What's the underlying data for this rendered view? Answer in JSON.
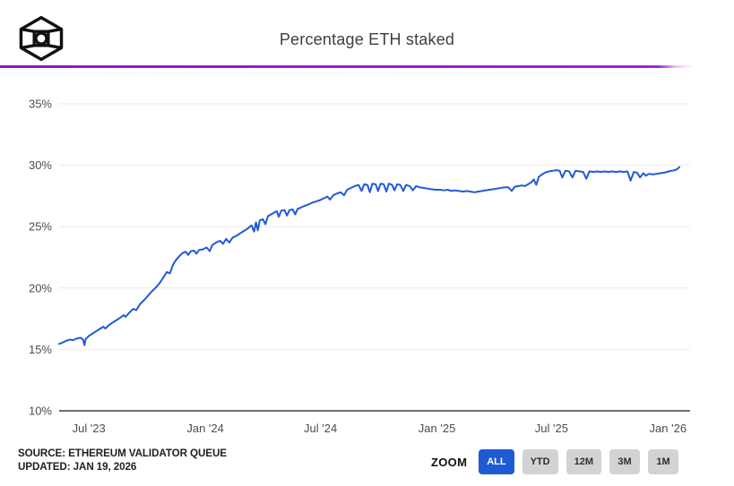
{
  "header": {
    "title": "Percentage ETH staked",
    "logo": "cube-logo"
  },
  "chart_data": {
    "type": "line",
    "title": "Percentage ETH staked",
    "xlabel": "",
    "ylabel": "",
    "ylim": [
      10,
      35
    ],
    "grid": true,
    "legend": "none",
    "line_color": "#2259d6",
    "axis_color": "#6f6f6f",
    "grid_color": "#e9e9e9",
    "x_range": [
      "2023-05-15",
      "2026-01-19"
    ],
    "yticks": [
      {
        "value": 35,
        "label": "35%"
      },
      {
        "value": 30,
        "label": "30%"
      },
      {
        "value": 25,
        "label": "25%"
      },
      {
        "value": 20,
        "label": "20%"
      },
      {
        "value": 15,
        "label": "15%"
      },
      {
        "value": 10,
        "label": "10%"
      }
    ],
    "xticks": [
      {
        "date": "2023-07-01",
        "label": "Jul '23"
      },
      {
        "date": "2024-01-01",
        "label": "Jan '24"
      },
      {
        "date": "2024-07-01",
        "label": "Jul '24"
      },
      {
        "date": "2025-01-01",
        "label": "Jan '25"
      },
      {
        "date": "2025-07-01",
        "label": "Jul '25"
      },
      {
        "date": "2026-01-01",
        "label": "Jan '26"
      }
    ],
    "series": [
      {
        "name": "Percentage ETH staked",
        "points": [
          [
            "2023-05-15",
            15.45
          ],
          [
            "2023-05-20",
            15.55
          ],
          [
            "2023-05-26",
            15.7
          ],
          [
            "2023-06-01",
            15.8
          ],
          [
            "2023-06-06",
            15.75
          ],
          [
            "2023-06-12",
            15.9
          ],
          [
            "2023-06-18",
            15.95
          ],
          [
            "2023-06-22",
            15.8
          ],
          [
            "2023-06-24",
            15.35
          ],
          [
            "2023-06-26",
            15.85
          ],
          [
            "2023-07-01",
            16.1
          ],
          [
            "2023-07-07",
            16.3
          ],
          [
            "2023-07-13",
            16.5
          ],
          [
            "2023-07-19",
            16.7
          ],
          [
            "2023-07-24",
            16.85
          ],
          [
            "2023-07-27",
            16.7
          ],
          [
            "2023-08-02",
            17.0
          ],
          [
            "2023-08-08",
            17.2
          ],
          [
            "2023-08-14",
            17.4
          ],
          [
            "2023-08-20",
            17.6
          ],
          [
            "2023-08-25",
            17.8
          ],
          [
            "2023-08-28",
            17.65
          ],
          [
            "2023-09-03",
            18.0
          ],
          [
            "2023-09-09",
            18.3
          ],
          [
            "2023-09-14",
            18.2
          ],
          [
            "2023-09-20",
            18.7
          ],
          [
            "2023-09-26",
            19.0
          ],
          [
            "2023-10-02",
            19.35
          ],
          [
            "2023-10-08",
            19.7
          ],
          [
            "2023-10-14",
            20.0
          ],
          [
            "2023-10-20",
            20.35
          ],
          [
            "2023-10-26",
            20.8
          ],
          [
            "2023-11-01",
            21.3
          ],
          [
            "2023-11-06",
            21.2
          ],
          [
            "2023-11-11",
            21.9
          ],
          [
            "2023-11-16",
            22.3
          ],
          [
            "2023-11-21",
            22.6
          ],
          [
            "2023-11-26",
            22.85
          ],
          [
            "2023-12-01",
            22.95
          ],
          [
            "2023-12-05",
            22.7
          ],
          [
            "2023-12-09",
            23.0
          ],
          [
            "2023-12-14",
            23.05
          ],
          [
            "2023-12-18",
            22.8
          ],
          [
            "2023-12-22",
            23.1
          ],
          [
            "2023-12-28",
            23.15
          ],
          [
            "2024-01-03",
            23.3
          ],
          [
            "2024-01-08",
            23.0
          ],
          [
            "2024-01-12",
            23.5
          ],
          [
            "2024-01-18",
            23.7
          ],
          [
            "2024-01-24",
            23.85
          ],
          [
            "2024-01-29",
            23.6
          ],
          [
            "2024-02-03",
            24.0
          ],
          [
            "2024-02-08",
            23.7
          ],
          [
            "2024-02-13",
            24.1
          ],
          [
            "2024-02-19",
            24.25
          ],
          [
            "2024-02-25",
            24.45
          ],
          [
            "2024-03-02",
            24.65
          ],
          [
            "2024-03-08",
            24.85
          ],
          [
            "2024-03-14",
            25.1
          ],
          [
            "2024-03-18",
            24.6
          ],
          [
            "2024-03-21",
            25.35
          ],
          [
            "2024-03-24",
            24.7
          ],
          [
            "2024-03-27",
            25.5
          ],
          [
            "2024-04-01",
            25.6
          ],
          [
            "2024-04-05",
            25.2
          ],
          [
            "2024-04-09",
            25.85
          ],
          [
            "2024-04-14",
            26.0
          ],
          [
            "2024-04-19",
            26.15
          ],
          [
            "2024-04-23",
            26.25
          ],
          [
            "2024-04-26",
            25.8
          ],
          [
            "2024-04-30",
            26.3
          ],
          [
            "2024-05-05",
            26.35
          ],
          [
            "2024-05-09",
            25.9
          ],
          [
            "2024-05-13",
            26.35
          ],
          [
            "2024-05-18",
            26.4
          ],
          [
            "2024-05-22",
            26.0
          ],
          [
            "2024-05-26",
            26.45
          ],
          [
            "2024-05-31",
            26.55
          ],
          [
            "2024-06-06",
            26.7
          ],
          [
            "2024-06-12",
            26.8
          ],
          [
            "2024-06-18",
            26.95
          ],
          [
            "2024-06-24",
            27.05
          ],
          [
            "2024-06-30",
            27.15
          ],
          [
            "2024-07-06",
            27.3
          ],
          [
            "2024-07-12",
            27.45
          ],
          [
            "2024-07-16",
            27.2
          ],
          [
            "2024-07-21",
            27.55
          ],
          [
            "2024-07-27",
            27.7
          ],
          [
            "2024-08-02",
            27.8
          ],
          [
            "2024-08-07",
            27.55
          ],
          [
            "2024-08-12",
            28.0
          ],
          [
            "2024-08-18",
            28.15
          ],
          [
            "2024-08-24",
            28.3
          ],
          [
            "2024-08-30",
            28.4
          ],
          [
            "2024-09-04",
            27.9
          ],
          [
            "2024-09-08",
            28.45
          ],
          [
            "2024-09-13",
            28.4
          ],
          [
            "2024-09-17",
            27.8
          ],
          [
            "2024-09-21",
            28.5
          ],
          [
            "2024-09-26",
            28.45
          ],
          [
            "2024-09-30",
            27.9
          ],
          [
            "2024-10-04",
            28.5
          ],
          [
            "2024-10-09",
            28.45
          ],
          [
            "2024-10-13",
            27.85
          ],
          [
            "2024-10-17",
            28.5
          ],
          [
            "2024-10-22",
            28.4
          ],
          [
            "2024-10-26",
            27.95
          ],
          [
            "2024-10-30",
            28.45
          ],
          [
            "2024-11-04",
            28.4
          ],
          [
            "2024-11-09",
            27.9
          ],
          [
            "2024-11-13",
            28.4
          ],
          [
            "2024-11-19",
            28.3
          ],
          [
            "2024-11-24",
            27.95
          ],
          [
            "2024-11-29",
            28.3
          ],
          [
            "2024-12-05",
            28.2
          ],
          [
            "2024-12-11",
            28.15
          ],
          [
            "2024-12-17",
            28.1
          ],
          [
            "2024-12-23",
            28.05
          ],
          [
            "2024-12-30",
            28.0
          ],
          [
            "2025-01-06",
            28.0
          ],
          [
            "2025-01-12",
            27.95
          ],
          [
            "2025-01-18",
            28.0
          ],
          [
            "2025-01-24",
            27.9
          ],
          [
            "2025-01-30",
            27.95
          ],
          [
            "2025-02-05",
            27.9
          ],
          [
            "2025-02-11",
            27.85
          ],
          [
            "2025-02-17",
            27.9
          ],
          [
            "2025-02-23",
            27.85
          ],
          [
            "2025-03-01",
            27.8
          ],
          [
            "2025-03-07",
            27.85
          ],
          [
            "2025-03-13",
            27.9
          ],
          [
            "2025-03-19",
            27.95
          ],
          [
            "2025-03-25",
            28.0
          ],
          [
            "2025-03-31",
            28.05
          ],
          [
            "2025-04-06",
            28.1
          ],
          [
            "2025-04-12",
            28.15
          ],
          [
            "2025-04-18",
            28.2
          ],
          [
            "2025-04-24",
            28.2
          ],
          [
            "2025-04-29",
            27.9
          ],
          [
            "2025-05-04",
            28.25
          ],
          [
            "2025-05-10",
            28.3
          ],
          [
            "2025-05-15",
            28.35
          ],
          [
            "2025-05-20",
            28.3
          ],
          [
            "2025-05-25",
            28.45
          ],
          [
            "2025-05-30",
            28.6
          ],
          [
            "2025-06-03",
            28.85
          ],
          [
            "2025-06-07",
            28.4
          ],
          [
            "2025-06-11",
            29.05
          ],
          [
            "2025-06-16",
            29.25
          ],
          [
            "2025-06-21",
            29.4
          ],
          [
            "2025-06-27",
            29.5
          ],
          [
            "2025-07-03",
            29.55
          ],
          [
            "2025-07-09",
            29.6
          ],
          [
            "2025-07-14",
            29.55
          ],
          [
            "2025-07-18",
            29.0
          ],
          [
            "2025-07-23",
            29.55
          ],
          [
            "2025-07-29",
            29.5
          ],
          [
            "2025-08-03",
            29.0
          ],
          [
            "2025-08-08",
            29.55
          ],
          [
            "2025-08-14",
            29.5
          ],
          [
            "2025-08-20",
            29.45
          ],
          [
            "2025-08-25",
            28.9
          ],
          [
            "2025-08-30",
            29.5
          ],
          [
            "2025-09-05",
            29.45
          ],
          [
            "2025-09-11",
            29.5
          ],
          [
            "2025-09-17",
            29.45
          ],
          [
            "2025-09-23",
            29.5
          ],
          [
            "2025-09-29",
            29.45
          ],
          [
            "2025-10-05",
            29.5
          ],
          [
            "2025-10-11",
            29.45
          ],
          [
            "2025-10-17",
            29.5
          ],
          [
            "2025-10-23",
            29.45
          ],
          [
            "2025-10-29",
            29.5
          ],
          [
            "2025-11-03",
            28.75
          ],
          [
            "2025-11-08",
            29.45
          ],
          [
            "2025-11-13",
            29.4
          ],
          [
            "2025-11-18",
            29.0
          ],
          [
            "2025-11-23",
            29.35
          ],
          [
            "2025-11-27",
            29.15
          ],
          [
            "2025-12-02",
            29.3
          ],
          [
            "2025-12-08",
            29.25
          ],
          [
            "2025-12-14",
            29.3
          ],
          [
            "2025-12-20",
            29.35
          ],
          [
            "2025-12-27",
            29.4
          ],
          [
            "2026-01-02",
            29.5
          ],
          [
            "2026-01-07",
            29.55
          ],
          [
            "2026-01-12",
            29.6
          ],
          [
            "2026-01-16",
            29.7
          ],
          [
            "2026-01-19",
            29.85
          ]
        ]
      }
    ]
  },
  "footer": {
    "source_line1": "SOURCE: ETHEREUM VALIDATOR QUEUE",
    "source_line2": "UPDATED: JAN 19, 2026",
    "zoom_label": "ZOOM",
    "active_color": "#1d5bd3",
    "inactive_color": "#d3d3d3",
    "zoom_buttons": [
      {
        "label": "ALL",
        "active": true
      },
      {
        "label": "YTD",
        "active": false
      },
      {
        "label": "12M",
        "active": false
      },
      {
        "label": "3M",
        "active": false
      },
      {
        "label": "1M",
        "active": false
      }
    ]
  }
}
